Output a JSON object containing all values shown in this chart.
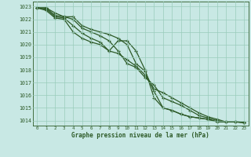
{
  "xlabel": "Graphe pression niveau de la mer (hPa)",
  "background_color": "#c8e8e4",
  "grid_color": "#99ccbb",
  "line_color": "#2d5a27",
  "xlim": [
    -0.5,
    23.5
  ],
  "ylim": [
    1013.6,
    1023.4
  ],
  "yticks": [
    1014,
    1015,
    1016,
    1017,
    1018,
    1019,
    1020,
    1021,
    1022,
    1023
  ],
  "xticks": [
    0,
    1,
    2,
    3,
    4,
    5,
    6,
    7,
    8,
    9,
    10,
    11,
    12,
    13,
    14,
    15,
    16,
    17,
    18,
    19,
    20,
    21,
    22,
    23
  ],
  "x": [
    0,
    1,
    2,
    3,
    4,
    5,
    6,
    7,
    8,
    9,
    10,
    11,
    12,
    13,
    14,
    15,
    16,
    17,
    18,
    19,
    20,
    21,
    22,
    23
  ],
  "line1": [
    1022.9,
    1022.9,
    1022.5,
    1022.2,
    1022.2,
    1021.5,
    1021.2,
    1021.0,
    1020.8,
    1020.5,
    1020.0,
    1018.5,
    1017.9,
    1016.3,
    1015.0,
    1014.8,
    1014.5,
    1014.3,
    1014.2,
    1014.1,
    1013.9,
    1013.9,
    1013.9,
    1013.85
  ],
  "line2": [
    1022.9,
    1022.9,
    1022.3,
    1022.2,
    1022.0,
    1021.3,
    1021.0,
    1020.7,
    1020.3,
    1019.5,
    1018.5,
    1018.2,
    1017.4,
    1016.8,
    1015.8,
    1015.5,
    1015.2,
    1014.8,
    1014.4,
    1014.2,
    1014.0,
    1013.9,
    1013.9,
    1013.85
  ],
  "line3": [
    1022.9,
    1022.8,
    1022.2,
    1022.1,
    1021.5,
    1020.9,
    1020.5,
    1020.2,
    1019.5,
    1019.3,
    1018.8,
    1018.3,
    1017.6,
    1016.5,
    1016.2,
    1015.8,
    1015.4,
    1015.0,
    1014.6,
    1014.3,
    1014.1,
    1013.9,
    1013.9,
    1013.85
  ],
  "line4": [
    1022.9,
    1022.7,
    1022.1,
    1022.0,
    1021.0,
    1020.5,
    1020.2,
    1020.0,
    1019.5,
    1020.3,
    1020.3,
    1019.5,
    1018.0,
    1015.8,
    1015.0,
    1014.8,
    1014.5,
    1014.3,
    1014.2,
    1014.1,
    1013.9,
    1013.9,
    1013.9,
    1013.85
  ]
}
